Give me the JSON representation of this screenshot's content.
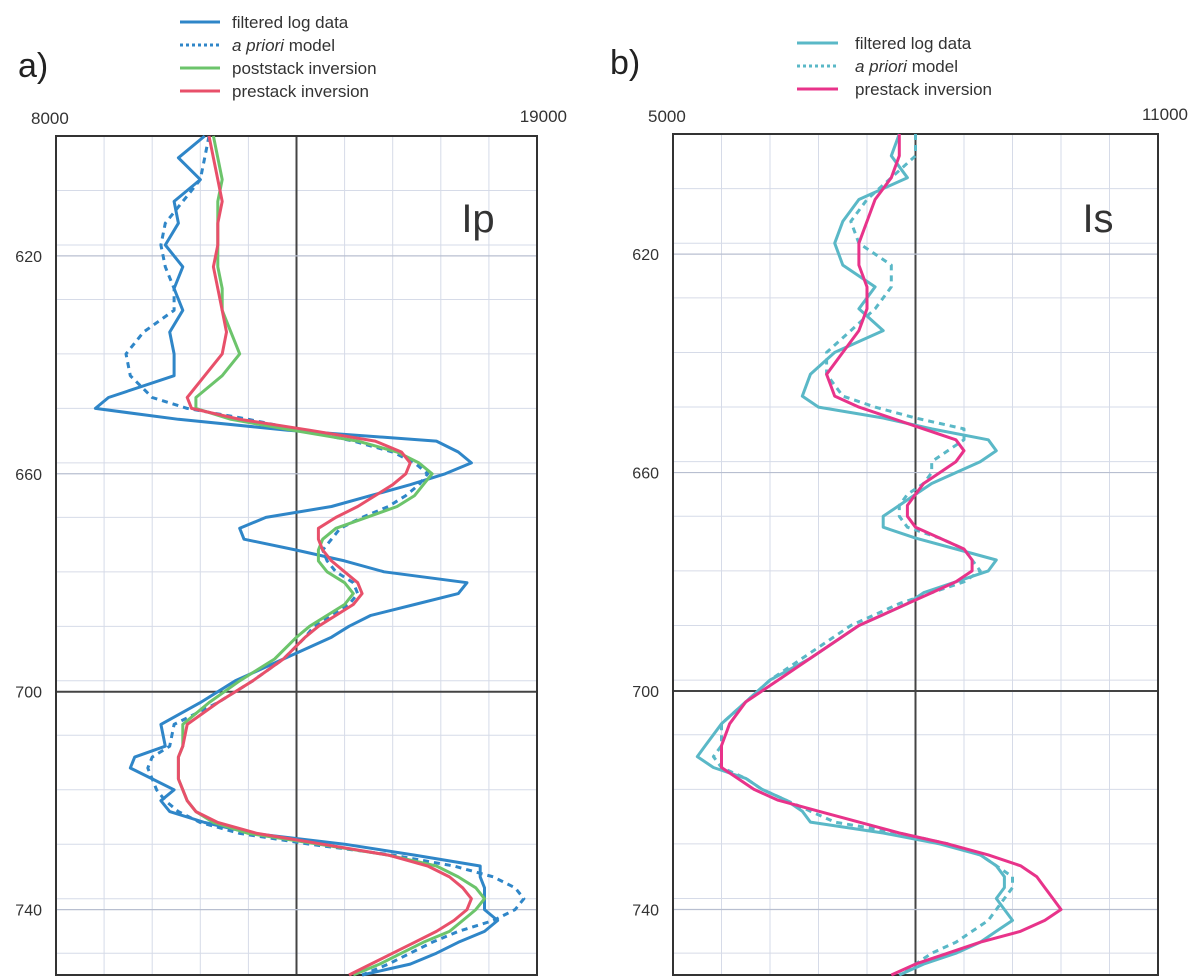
{
  "colors": {
    "filtered_a": "#2f86c8",
    "apriori_a": "#2f86c8",
    "poststack": "#6cc46b",
    "prestack_a": "#e8506a",
    "filtered_b": "#5ab8c7",
    "apriori_b": "#5ab8c7",
    "prestack_b": "#e8338a"
  },
  "chart_data": [
    {
      "type": "line",
      "panel_label": "a)",
      "title": "Ip",
      "xlim": [
        8000,
        19000
      ],
      "x_tick_labels": [
        "8000",
        "19000"
      ],
      "ylim": [
        598,
        752
      ],
      "y_reversed": true,
      "y_ticks": [
        620,
        660,
        700,
        740
      ],
      "y_tick_labels": [
        "620",
        "660",
        "700",
        "740"
      ],
      "legend": [
        {
          "label": "filtered log data",
          "style": "solid",
          "color_key": "filtered_a"
        },
        {
          "label": "a priori model",
          "style": "dotted",
          "color_key": "apriori_a",
          "italic_prefix": "a priori",
          "rest": " model"
        },
        {
          "label": "poststack inversion",
          "style": "solid",
          "color_key": "poststack"
        },
        {
          "label": "prestack inversion",
          "style": "solid",
          "color_key": "prestack_a"
        }
      ],
      "series": [
        {
          "name": "filtered log data",
          "color_key": "filtered_a",
          "dashed": false,
          "depth": [
            598,
            602,
            606,
            610,
            614,
            618,
            622,
            626,
            630,
            634,
            638,
            642,
            646,
            648,
            650,
            652,
            654,
            656,
            658,
            660,
            662,
            664,
            666,
            668,
            670,
            672,
            674,
            676,
            678,
            680,
            682,
            684,
            686,
            688,
            690,
            694,
            698,
            702,
            706,
            710,
            712,
            714,
            716,
            718,
            720,
            722,
            724,
            726,
            728,
            730,
            732,
            734,
            736,
            738,
            740,
            742,
            744,
            746,
            748,
            750,
            752
          ],
          "value": [
            11400,
            10800,
            11300,
            10700,
            10800,
            10500,
            10900,
            10700,
            10900,
            10600,
            10700,
            10700,
            9200,
            8900,
            10800,
            13300,
            16700,
            17200,
            17500,
            16900,
            16100,
            15200,
            14300,
            12800,
            12200,
            12300,
            13500,
            14600,
            15500,
            17400,
            17200,
            16200,
            15200,
            14700,
            14300,
            13200,
            12100,
            11300,
            10400,
            10500,
            9800,
            9700,
            10200,
            10700,
            10400,
            10600,
            11400,
            12500,
            14600,
            16200,
            17700,
            17700,
            17800,
            17800,
            17800,
            18100,
            17800,
            17200,
            16700,
            16100,
            15000
          ]
        },
        {
          "name": "a priori model",
          "color_key": "apriori_a",
          "dashed": true,
          "depth": [
            598,
            602,
            606,
            610,
            614,
            618,
            622,
            626,
            630,
            634,
            638,
            642,
            646,
            648,
            650,
            652,
            654,
            656,
            658,
            660,
            662,
            664,
            666,
            668,
            670,
            672,
            674,
            676,
            678,
            680,
            682,
            684,
            686,
            688,
            690,
            694,
            698,
            702,
            706,
            710,
            712,
            714,
            716,
            718,
            720,
            722,
            724,
            726,
            728,
            730,
            732,
            734,
            736,
            738,
            740,
            742,
            744,
            746,
            748,
            750,
            752
          ],
          "value": [
            11500,
            11400,
            11300,
            10900,
            10500,
            10400,
            10500,
            10700,
            10700,
            10000,
            9600,
            9700,
            10200,
            11000,
            12400,
            13600,
            14800,
            15700,
            16200,
            16500,
            16300,
            16000,
            15600,
            15000,
            14500,
            14300,
            14100,
            14200,
            14400,
            14800,
            14900,
            14700,
            14300,
            13900,
            13700,
            13200,
            12500,
            11700,
            10700,
            10600,
            10200,
            10100,
            10200,
            10300,
            10500,
            10800,
            11300,
            12200,
            13800,
            15700,
            17100,
            18000,
            18500,
            18700,
            18500,
            18000,
            17200,
            16600,
            16100,
            15600,
            15000
          ]
        },
        {
          "name": "poststack inversion",
          "color_key": "poststack",
          "dashed": false,
          "depth": [
            598,
            602,
            606,
            610,
            614,
            618,
            622,
            626,
            630,
            634,
            638,
            642,
            646,
            648,
            650,
            652,
            654,
            656,
            658,
            660,
            662,
            664,
            666,
            668,
            670,
            672,
            674,
            676,
            678,
            680,
            682,
            684,
            686,
            688,
            690,
            694,
            698,
            702,
            706,
            710,
            712,
            714,
            716,
            718,
            720,
            722,
            724,
            726,
            728,
            730,
            732,
            734,
            736,
            738,
            740,
            742,
            744,
            746,
            748,
            750,
            752
          ],
          "value": [
            11600,
            11700,
            11800,
            11700,
            11700,
            11700,
            11700,
            11800,
            11800,
            12000,
            12200,
            11800,
            11200,
            11200,
            12000,
            13400,
            14900,
            15800,
            16300,
            16600,
            16400,
            16200,
            15800,
            15100,
            14400,
            14100,
            14000,
            14000,
            14200,
            14600,
            14800,
            14600,
            14200,
            13800,
            13500,
            13000,
            12200,
            11500,
            10900,
            10900,
            10800,
            10800,
            10800,
            10900,
            11000,
            11200,
            11600,
            12400,
            14000,
            15600,
            16700,
            17200,
            17600,
            17800,
            17600,
            17300,
            17000,
            16400,
            15900,
            15400,
            14800
          ]
        },
        {
          "name": "prestack inversion",
          "color_key": "prestack_a",
          "dashed": false,
          "depth": [
            598,
            602,
            606,
            610,
            614,
            618,
            622,
            626,
            630,
            634,
            638,
            642,
            646,
            648,
            650,
            652,
            654,
            656,
            658,
            660,
            662,
            664,
            666,
            668,
            670,
            672,
            674,
            676,
            678,
            680,
            682,
            684,
            686,
            688,
            690,
            694,
            698,
            702,
            706,
            710,
            712,
            714,
            716,
            718,
            720,
            722,
            724,
            726,
            728,
            730,
            732,
            734,
            736,
            738,
            740,
            742,
            744,
            746,
            748,
            750,
            752
          ],
          "value": [
            11500,
            11600,
            11700,
            11800,
            11700,
            11700,
            11600,
            11700,
            11800,
            11900,
            11800,
            11400,
            11000,
            11100,
            12200,
            13800,
            15300,
            15900,
            16100,
            16000,
            15700,
            15300,
            14900,
            14400,
            14000,
            14000,
            14100,
            14300,
            14600,
            14900,
            15000,
            14800,
            14400,
            14000,
            13700,
            13200,
            12500,
            11700,
            11000,
            10900,
            10800,
            10800,
            10800,
            10900,
            11000,
            11200,
            11700,
            12600,
            14100,
            15600,
            16500,
            17000,
            17300,
            17500,
            17400,
            17100,
            16700,
            16200,
            15700,
            15200,
            14700
          ]
        }
      ]
    },
    {
      "type": "line",
      "panel_label": "b)",
      "title": "Is",
      "xlim": [
        5000,
        11000
      ],
      "x_tick_labels": [
        "5000",
        "11000"
      ],
      "ylim": [
        598,
        752
      ],
      "y_reversed": true,
      "y_ticks": [
        620,
        660,
        700,
        740
      ],
      "y_tick_labels": [
        "620",
        "660",
        "700",
        "740"
      ],
      "legend": [
        {
          "label": "filtered log data",
          "style": "solid",
          "color_key": "filtered_b"
        },
        {
          "label": "a priori model",
          "style": "dotted",
          "color_key": "apriori_b",
          "italic_prefix": "a priori",
          "rest": " model"
        },
        {
          "label": "prestack inversion",
          "style": "solid",
          "color_key": "prestack_b"
        }
      ],
      "series": [
        {
          "name": "filtered log data",
          "color_key": "filtered_b",
          "dashed": false,
          "depth": [
            598,
            602,
            606,
            610,
            614,
            618,
            622,
            626,
            630,
            634,
            638,
            642,
            646,
            648,
            650,
            652,
            654,
            656,
            658,
            660,
            662,
            664,
            666,
            668,
            670,
            672,
            674,
            676,
            678,
            680,
            682,
            684,
            686,
            688,
            690,
            694,
            698,
            702,
            706,
            710,
            712,
            714,
            716,
            718,
            720,
            722,
            724,
            726,
            728,
            730,
            732,
            734,
            736,
            738,
            740,
            742,
            744,
            746,
            748,
            750,
            752
          ],
          "value": [
            7800,
            7700,
            7900,
            7300,
            7100,
            7000,
            7100,
            7500,
            7300,
            7600,
            7000,
            6700,
            6600,
            6800,
            7600,
            8200,
            8900,
            9000,
            8800,
            8500,
            8200,
            8000,
            7800,
            7600,
            7600,
            8000,
            8500,
            9000,
            8900,
            8500,
            8100,
            7900,
            7600,
            7300,
            7100,
            6700,
            6200,
            5900,
            5600,
            5400,
            5300,
            5500,
            5900,
            6100,
            6400,
            6600,
            6700,
            7600,
            8300,
            8800,
            9000,
            9100,
            9100,
            9000,
            9100,
            9200,
            9000,
            8800,
            8500,
            8100,
            7800
          ]
        },
        {
          "name": "a priori model",
          "color_key": "apriori_b",
          "dashed": true,
          "depth": [
            598,
            602,
            606,
            610,
            614,
            618,
            622,
            626,
            630,
            634,
            638,
            642,
            646,
            648,
            650,
            652,
            654,
            656,
            658,
            660,
            662,
            664,
            666,
            668,
            670,
            672,
            674,
            676,
            678,
            680,
            682,
            684,
            686,
            688,
            690,
            694,
            698,
            702,
            706,
            710,
            712,
            714,
            716,
            718,
            720,
            722,
            724,
            726,
            728,
            730,
            732,
            734,
            736,
            738,
            740,
            742,
            744,
            746,
            748,
            750,
            752
          ],
          "value": [
            8000,
            8000,
            7700,
            7400,
            7200,
            7300,
            7700,
            7700,
            7500,
            7200,
            6900,
            6900,
            7100,
            7500,
            8000,
            8600,
            8600,
            8400,
            8200,
            8200,
            8100,
            7900,
            7800,
            7800,
            7900,
            8300,
            8600,
            8700,
            8800,
            8600,
            8200,
            7800,
            7500,
            7200,
            7000,
            6600,
            6200,
            5900,
            5600,
            5600,
            5500,
            5600,
            5900,
            6100,
            6400,
            6700,
            7000,
            7800,
            8400,
            8800,
            9000,
            9200,
            9200,
            9100,
            9000,
            8900,
            8700,
            8500,
            8200,
            8000,
            7800
          ]
        },
        {
          "name": "prestack inversion",
          "color_key": "prestack_b",
          "dashed": false,
          "depth": [
            598,
            602,
            606,
            610,
            614,
            618,
            622,
            626,
            630,
            634,
            638,
            642,
            646,
            648,
            650,
            652,
            654,
            656,
            658,
            660,
            662,
            664,
            666,
            668,
            670,
            672,
            674,
            676,
            678,
            680,
            682,
            684,
            686,
            688,
            690,
            694,
            698,
            702,
            706,
            710,
            712,
            714,
            716,
            718,
            720,
            722,
            724,
            726,
            728,
            730,
            732,
            734,
            736,
            738,
            740,
            742,
            744,
            746,
            748,
            750,
            752
          ],
          "value": [
            7800,
            7800,
            7700,
            7500,
            7400,
            7300,
            7300,
            7400,
            7400,
            7300,
            7100,
            6900,
            7000,
            7300,
            7700,
            8100,
            8500,
            8600,
            8500,
            8300,
            8100,
            8000,
            7900,
            7900,
            8000,
            8300,
            8600,
            8700,
            8700,
            8500,
            8200,
            7900,
            7600,
            7300,
            7100,
            6700,
            6300,
            5900,
            5700,
            5600,
            5600,
            5600,
            5800,
            6000,
            6300,
            6800,
            7300,
            7800,
            8400,
            8900,
            9300,
            9500,
            9600,
            9700,
            9800,
            9600,
            9300,
            8800,
            8400,
            8000,
            7700
          ]
        }
      ]
    }
  ]
}
